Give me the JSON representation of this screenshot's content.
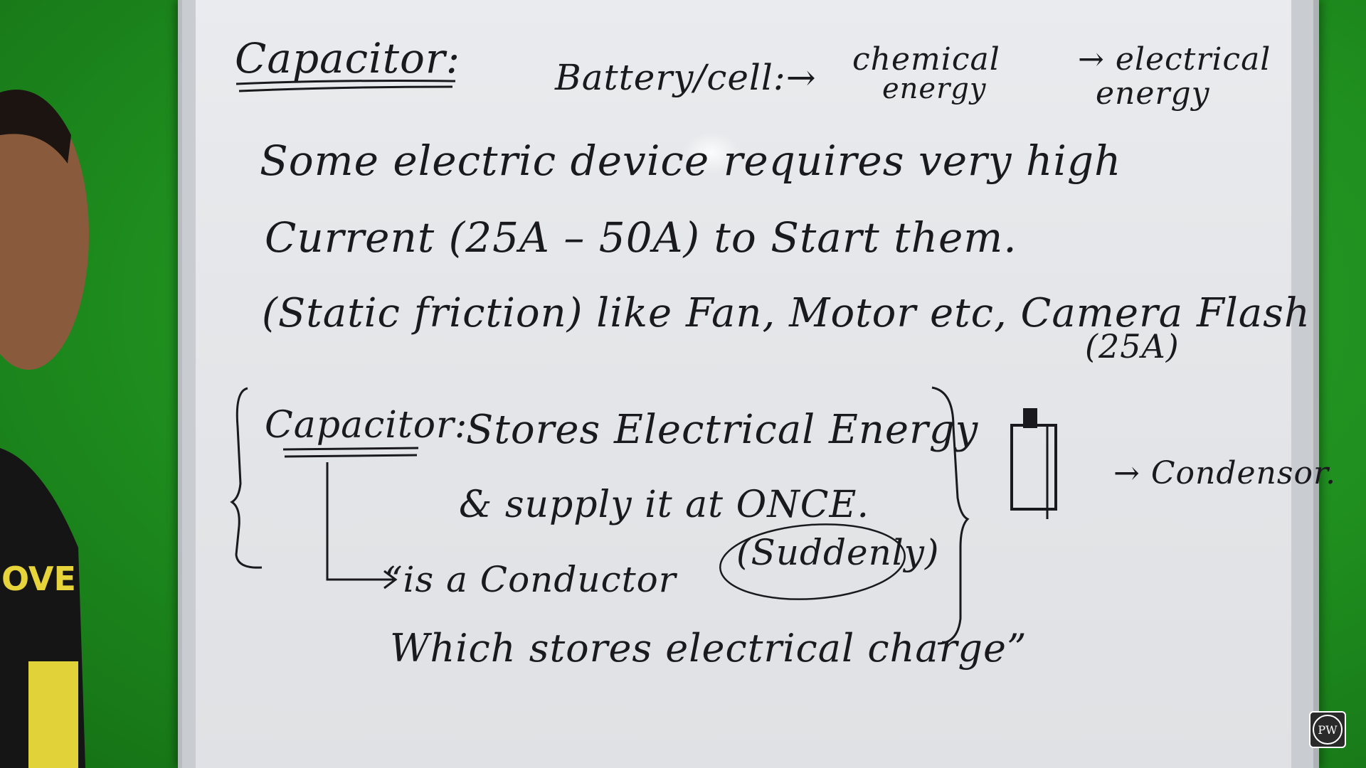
{
  "board": {
    "title": "Capacitor:",
    "battery_label": "Battery/cell:→",
    "chem_line1": "chemical",
    "chem_line2": "energy",
    "elec_line1": "→ electrical",
    "elec_line2": "energy",
    "line1": "Some electric device requires very high",
    "line2": "Current (25A – 50A) to Start them.",
    "line3": "(Static friction) like Fan, Motor etc, Camera Flash",
    "camera_amps": "(25A)",
    "capacitor_label": "Capacitor:",
    "stores_text": "Stores Electrical Energy",
    "supply_text": "& supply it at ONCE.",
    "suddenly_text": "(Suddenly)",
    "conductor_text": "“is a Conductor",
    "which_text": "Which stores electrical charge”",
    "condensor_text": "→ Condensor."
  },
  "logo": {
    "text": "PW"
  },
  "colors": {
    "ink": "#1a1a1e",
    "board": "#e6e8eb",
    "greenscreen": "#1f8f1f"
  }
}
